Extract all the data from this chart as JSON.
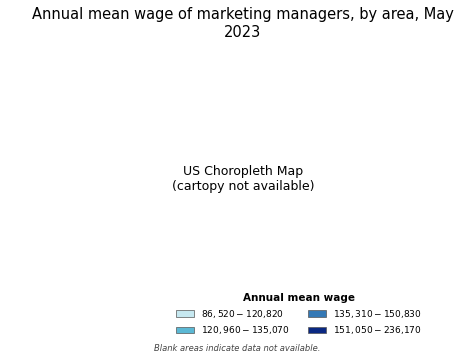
{
  "title": "Annual mean wage of marketing managers, by area, May 2023",
  "title_fontsize": 10.5,
  "legend_title": "Annual mean wage",
  "legend_entries": [
    {
      "label": "$86,520 - $120,820",
      "color": "#c6e8f0"
    },
    {
      "label": "$120,960 - $135,070",
      "color": "#5bb8d4"
    },
    {
      "label": "$135,310 - $150,830",
      "color": "#3478b5"
    },
    {
      "label": "$151,050 - $236,170",
      "color": "#0a2882"
    }
  ],
  "no_data_color": "#ffffff",
  "border_color": "#888888",
  "border_width": 0.3,
  "blank_note": "Blank areas indicate data not available.",
  "background_color": "#ffffff",
  "legend_title_fontsize": 7.5,
  "legend_fontsize": 6.5,
  "note_fontsize": 6
}
